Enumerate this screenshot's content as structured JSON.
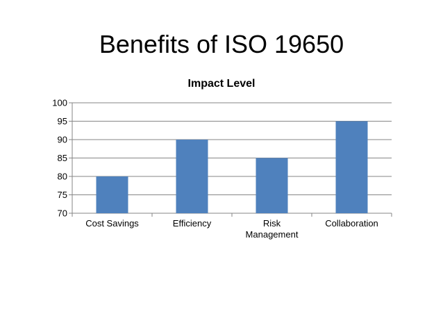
{
  "slide": {
    "title": "Benefits of ISO 19650"
  },
  "chart_data": {
    "type": "bar",
    "title": "Impact Level",
    "xlabel": "",
    "ylabel": "",
    "categories": [
      "Cost Savings",
      "Efficiency",
      "Risk Management",
      "Collaboration"
    ],
    "category_lines": [
      [
        "Cost Savings"
      ],
      [
        "Efficiency"
      ],
      [
        "Risk",
        "Management"
      ],
      [
        "Collaboration"
      ]
    ],
    "series": [
      {
        "values": [
          80,
          90,
          85,
          95
        ]
      }
    ],
    "ylim": [
      70,
      100
    ],
    "yticks": [
      70,
      75,
      80,
      85,
      90,
      95,
      100
    ],
    "grid": true,
    "legend": "none",
    "colors": {
      "bar": "#4f81bd",
      "grid": "#868686",
      "axis": "#868686"
    }
  }
}
